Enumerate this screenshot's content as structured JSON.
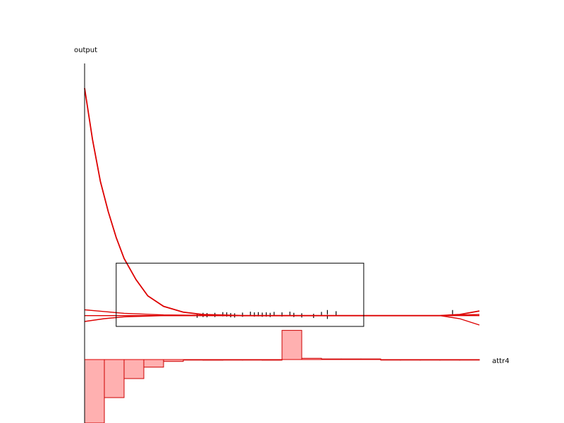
{
  "chart_data": {
    "type": "line",
    "xlabel": "attr4",
    "ylabel": "output",
    "grid": false,
    "colors": {
      "curve": "#dd0000",
      "bar_fill": "#ffb0b0",
      "bar_stroke": "#cc0000",
      "axis": "#000000",
      "marks": "#000000"
    },
    "series": [
      {
        "values": [
          [
            0,
            1.0
          ],
          [
            0.02,
            0.78
          ],
          [
            0.04,
            0.6
          ],
          [
            0.06,
            0.47
          ],
          [
            0.08,
            0.36
          ],
          [
            0.1,
            0.27
          ],
          [
            0.13,
            0.18
          ],
          [
            0.16,
            0.11
          ],
          [
            0.2,
            0.065
          ],
          [
            0.25,
            0.04
          ],
          [
            0.3,
            0.03
          ],
          [
            0.4,
            0.025
          ],
          [
            0.5,
            0.025
          ],
          [
            0.6,
            0.025
          ],
          [
            0.7,
            0.025
          ],
          [
            0.8,
            0.025
          ],
          [
            0.9,
            0.025
          ],
          [
            0.95,
            0.03
          ],
          [
            1.0,
            0.045
          ]
        ]
      },
      {
        "values": [
          [
            0,
            0.0
          ],
          [
            0.05,
            0.012
          ],
          [
            0.1,
            0.02
          ],
          [
            0.2,
            0.025
          ],
          [
            0.3,
            0.025
          ],
          [
            0.5,
            0.025
          ],
          [
            0.7,
            0.025
          ],
          [
            0.9,
            0.025
          ],
          [
            0.95,
            0.012
          ],
          [
            1.0,
            -0.015
          ]
        ]
      },
      {
        "values": [
          [
            0,
            0.05
          ],
          [
            0.1,
            0.035
          ],
          [
            0.2,
            0.028
          ],
          [
            0.4,
            0.025
          ],
          [
            0.6,
            0.025
          ],
          [
            0.8,
            0.025
          ],
          [
            0.9,
            0.025
          ],
          [
            1.0,
            0.03
          ]
        ]
      },
      {
        "values": [
          [
            0,
            0.025
          ],
          [
            1.0,
            0.025
          ]
        ]
      }
    ],
    "histogram": [
      1.0,
      0.6,
      0.3,
      0.12,
      0.03,
      0.0,
      0.01,
      0.0,
      0.0,
      0.01,
      -0.46,
      -0.02,
      -0.01,
      -0.01,
      -0.01,
      0.0,
      0.0,
      0.0,
      0.0,
      0.0
    ],
    "zoom_box": {
      "x": [
        0.08,
        0.707
      ],
      "y": [
        0.0,
        0.25
      ]
    },
    "marks": [
      [
        0.285,
        0.025
      ],
      [
        0.3,
        0.028
      ],
      [
        0.31,
        0.027
      ],
      [
        0.33,
        0.028
      ],
      [
        0.35,
        0.031
      ],
      [
        0.36,
        0.03
      ],
      [
        0.37,
        0.027
      ],
      [
        0.38,
        0.026
      ],
      [
        0.4,
        0.029
      ],
      [
        0.42,
        0.033
      ],
      [
        0.43,
        0.03
      ],
      [
        0.44,
        0.031
      ],
      [
        0.45,
        0.029
      ],
      [
        0.46,
        0.03
      ],
      [
        0.47,
        0.028
      ],
      [
        0.48,
        0.032
      ],
      [
        0.5,
        0.03
      ],
      [
        0.52,
        0.033
      ],
      [
        0.53,
        0.028
      ],
      [
        0.55,
        0.026
      ],
      [
        0.58,
        0.024
      ],
      [
        0.6,
        0.032
      ],
      [
        0.615,
        0.04
      ],
      [
        0.615,
        0.02
      ],
      [
        0.637,
        0.035
      ],
      [
        0.932,
        0.04
      ]
    ]
  }
}
